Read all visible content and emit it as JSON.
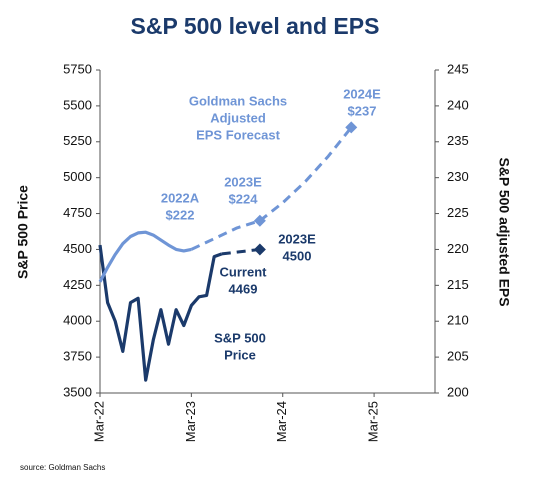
{
  "chart_data": {
    "type": "line",
    "title": "S&P 500 level and EPS",
    "ylabel": "S&P 500 Price",
    "y2label": "S&P 500 adjusted EPS",
    "source": "source: Goldman Sachs",
    "xlim": [
      "2022-03",
      "2025-11"
    ],
    "xticks": [
      {
        "value": "2022-03",
        "label": "Mar-22"
      },
      {
        "value": "2023-03",
        "label": "Mar-23"
      },
      {
        "value": "2024-03",
        "label": "Mar-24"
      },
      {
        "value": "2025-03",
        "label": "Mar-25"
      }
    ],
    "ylim": [
      3500,
      5750
    ],
    "yticks": [
      3500,
      3750,
      4000,
      4250,
      4500,
      4750,
      5000,
      5250,
      5500,
      5750
    ],
    "y2lim": [
      200,
      245
    ],
    "y2ticks": [
      200,
      205,
      210,
      215,
      220,
      225,
      230,
      235,
      240,
      245
    ],
    "series": [
      {
        "color": "#1b3a6b",
        "axis": "y",
        "style": "solid",
        "x": [
          "2022-03",
          "2022-04",
          "2022-05",
          "2022-06",
          "2022-07",
          "2022-08",
          "2022-09",
          "2022-10",
          "2022-11",
          "2022-12",
          "2023-01",
          "2023-02",
          "2023-03",
          "2023-04",
          "2023-05",
          "2023-06",
          "2023-07"
        ],
        "values": [
          4530,
          4130,
          4000,
          3790,
          4130,
          4160,
          3590,
          3870,
          4080,
          3840,
          4080,
          3970,
          4110,
          4170,
          4180,
          4450,
          4469
        ]
      },
      {
        "color": "#1b3a6b",
        "axis": "y",
        "style": "dashed",
        "marker": "diamond",
        "x": [
          "2023-07",
          "2023-12"
        ],
        "values": [
          4469,
          4500
        ]
      },
      {
        "color": "#6f95d6",
        "axis": "y2",
        "style": "solid",
        "x": [
          "2022-03",
          "2022-04",
          "2022-05",
          "2022-06",
          "2022-07",
          "2022-08",
          "2022-09",
          "2022-10",
          "2022-11",
          "2022-12",
          "2023-01",
          "2023-02",
          "2023-03"
        ],
        "values": [
          215.5,
          217.5,
          219.3,
          220.8,
          221.8,
          222.3,
          222.4,
          222,
          221.3,
          220.6,
          220,
          219.8,
          220
        ]
      },
      {
        "color": "#6f95d6",
        "axis": "y2",
        "style": "dashed",
        "marker": "diamond",
        "x": [
          "2023-03",
          "2023-06",
          "2023-09",
          "2023-12"
        ],
        "values": [
          220,
          221.5,
          223,
          224
        ]
      },
      {
        "color": "#6f95d6",
        "axis": "y2",
        "style": "dashed",
        "marker": "diamond",
        "x": [
          "2023-12",
          "2024-03",
          "2024-06",
          "2024-09",
          "2024-12"
        ],
        "values": [
          224,
          226.5,
          229.5,
          233,
          237
        ]
      }
    ],
    "annotations": [
      [
        "Goldman Sachs",
        "Adjusted",
        "EPS Forecast"
      ],
      [
        "2022A",
        "$222"
      ],
      [
        "2023E",
        "$224"
      ],
      [
        "2024E",
        "$237"
      ],
      [
        "2023E",
        "4500"
      ],
      [
        "Current",
        "4469"
      ],
      [
        "S&P 500",
        "Price"
      ]
    ]
  }
}
